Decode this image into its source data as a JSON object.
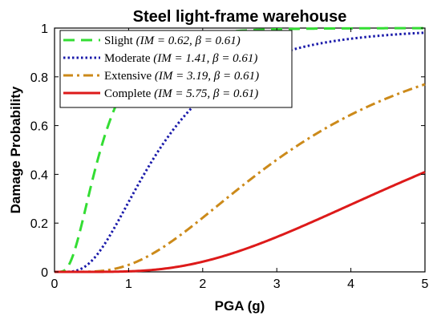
{
  "chart_data": {
    "type": "line",
    "title": "Steel light-frame warehouse",
    "xlabel": "PGA (g)",
    "ylabel": "Damage Probability",
    "xlim": [
      0,
      5
    ],
    "ylim": [
      0,
      1
    ],
    "xticks": [
      "0",
      "1",
      "2",
      "3",
      "4",
      "5"
    ],
    "yticks": [
      "0",
      "0.2",
      "0.4",
      "0.6",
      "0.8",
      "1"
    ],
    "grid": false,
    "legend_position": "top-left",
    "series": [
      {
        "name": "Slight",
        "median": 0.62,
        "beta": 0.61,
        "line_style": "dashed",
        "color": "#33dd33",
        "legend_name": "Slight",
        "legend_params": "(IM = 0.62, β = 0.61)"
      },
      {
        "name": "Moderate",
        "median": 1.41,
        "beta": 0.61,
        "line_style": "dotted",
        "color": "#1a1aaa",
        "legend_name": "Moderate",
        "legend_params": "(IM = 1.41, β = 0.61)"
      },
      {
        "name": "Extensive",
        "median": 3.19,
        "beta": 0.61,
        "line_style": "dash-dot",
        "color": "#cc8a1a",
        "legend_name": "Extensive",
        "legend_params": "(IM = 3.19, β = 0.61)"
      },
      {
        "name": "Complete",
        "median": 5.75,
        "beta": 0.61,
        "line_style": "solid",
        "color": "#dd1a1a",
        "legend_name": "Complete",
        "legend_params": "(IM = 5.75, β = 0.61)"
      }
    ]
  }
}
